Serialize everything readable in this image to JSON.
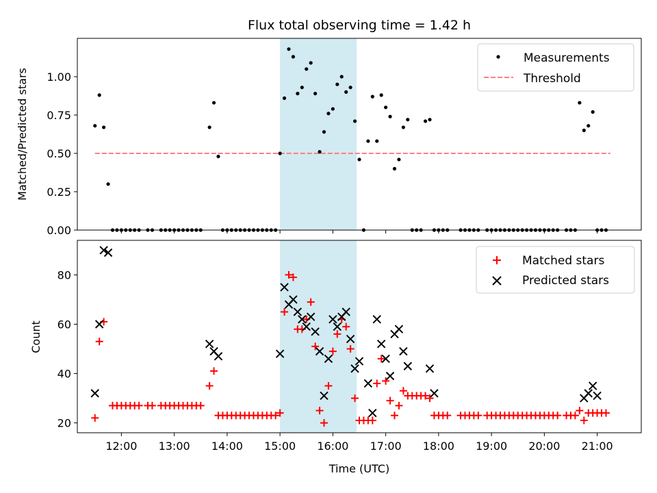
{
  "colors": {
    "highlight": "#add8e6",
    "threshold": "#ff7f7f",
    "matched": "#ff0000",
    "predicted": "#000000",
    "measurement": "#000000"
  },
  "chart_data": [
    {
      "type": "scatter",
      "title": "Flux total observing time = 1.42 h",
      "xlabel": "",
      "ylabel": "Matched/Predicted stars",
      "xlim": [
        "11:10",
        "21:50"
      ],
      "ylim": [
        0,
        1.25
      ],
      "yticks": [
        "0.00",
        "0.25",
        "0.50",
        "0.75",
        "1.00"
      ],
      "grid": false,
      "legend_position": "upper right",
      "highlight_span": [
        "15:00",
        "16:27"
      ],
      "series": [
        {
          "name": "Measurements",
          "kind": "points",
          "points": [
            [
              "11:30",
              0.68
            ],
            [
              "11:35",
              0.88
            ],
            [
              "11:40",
              0.67
            ],
            [
              "11:45",
              0.3
            ],
            [
              "11:50",
              0
            ],
            [
              "11:55",
              0
            ],
            [
              "12:00",
              0
            ],
            [
              "12:05",
              0
            ],
            [
              "12:10",
              0
            ],
            [
              "12:15",
              0
            ],
            [
              "12:20",
              0
            ],
            [
              "12:30",
              0
            ],
            [
              "12:35",
              0
            ],
            [
              "12:45",
              0
            ],
            [
              "12:50",
              0
            ],
            [
              "12:55",
              0
            ],
            [
              "13:00",
              0
            ],
            [
              "13:05",
              0
            ],
            [
              "13:10",
              0
            ],
            [
              "13:15",
              0
            ],
            [
              "13:20",
              0
            ],
            [
              "13:25",
              0
            ],
            [
              "13:30",
              0
            ],
            [
              "13:40",
              0.67
            ],
            [
              "13:45",
              0.83
            ],
            [
              "13:50",
              0.48
            ],
            [
              "13:55",
              0
            ],
            [
              "14:00",
              0
            ],
            [
              "14:05",
              0
            ],
            [
              "14:10",
              0
            ],
            [
              "14:15",
              0
            ],
            [
              "14:20",
              0
            ],
            [
              "14:25",
              0
            ],
            [
              "14:30",
              0
            ],
            [
              "14:35",
              0
            ],
            [
              "14:40",
              0
            ],
            [
              "14:45",
              0
            ],
            [
              "14:50",
              0
            ],
            [
              "14:55",
              0
            ],
            [
              "15:00",
              0.5
            ],
            [
              "15:05",
              0.86
            ],
            [
              "15:10",
              1.18
            ],
            [
              "15:15",
              1.13
            ],
            [
              "15:20",
              0.89
            ],
            [
              "15:25",
              0.93
            ],
            [
              "15:30",
              1.05
            ],
            [
              "15:35",
              1.09
            ],
            [
              "15:40",
              0.89
            ],
            [
              "15:45",
              0.51
            ],
            [
              "15:50",
              0.64
            ],
            [
              "15:55",
              0.76
            ],
            [
              "16:00",
              0.79
            ],
            [
              "16:05",
              0.95
            ],
            [
              "16:10",
              1.0
            ],
            [
              "16:15",
              0.9
            ],
            [
              "16:20",
              0.93
            ],
            [
              "16:25",
              0.71
            ],
            [
              "16:30",
              0.46
            ],
            [
              "16:35",
              0
            ],
            [
              "16:40",
              0.58
            ],
            [
              "16:45",
              0.87
            ],
            [
              "16:50",
              0.58
            ],
            [
              "16:55",
              0.88
            ],
            [
              "17:00",
              0.8
            ],
            [
              "17:05",
              0.74
            ],
            [
              "17:10",
              0.4
            ],
            [
              "17:15",
              0.46
            ],
            [
              "17:20",
              0.67
            ],
            [
              "17:25",
              0.72
            ],
            [
              "17:30",
              0
            ],
            [
              "17:35",
              0
            ],
            [
              "17:40",
              0
            ],
            [
              "17:45",
              0.71
            ],
            [
              "17:50",
              0.72
            ],
            [
              "17:55",
              0
            ],
            [
              "18:00",
              0
            ],
            [
              "18:05",
              0
            ],
            [
              "18:10",
              0
            ],
            [
              "18:25",
              0
            ],
            [
              "18:30",
              0
            ],
            [
              "18:35",
              0
            ],
            [
              "18:40",
              0
            ],
            [
              "18:45",
              0
            ],
            [
              "18:55",
              0
            ],
            [
              "19:00",
              0
            ],
            [
              "19:05",
              0
            ],
            [
              "19:10",
              0
            ],
            [
              "19:15",
              0
            ],
            [
              "19:20",
              0
            ],
            [
              "19:25",
              0
            ],
            [
              "19:30",
              0
            ],
            [
              "19:35",
              0
            ],
            [
              "19:40",
              0
            ],
            [
              "19:45",
              0
            ],
            [
              "19:50",
              0
            ],
            [
              "19:55",
              0
            ],
            [
              "20:00",
              0
            ],
            [
              "20:05",
              0
            ],
            [
              "20:10",
              0
            ],
            [
              "20:15",
              0
            ],
            [
              "20:25",
              0
            ],
            [
              "20:30",
              0
            ],
            [
              "20:35",
              0
            ],
            [
              "20:40",
              0.83
            ],
            [
              "20:45",
              0.65
            ],
            [
              "20:50",
              0.68
            ],
            [
              "20:55",
              0.77
            ],
            [
              "21:00",
              0
            ],
            [
              "21:05",
              0
            ],
            [
              "21:10",
              0
            ]
          ]
        },
        {
          "name": "Threshold",
          "kind": "dashed-line",
          "points": [
            [
              "11:30",
              0.5
            ],
            [
              "21:15",
              0.5
            ]
          ]
        }
      ]
    },
    {
      "type": "scatter",
      "xlabel": "Time (UTC)",
      "ylabel": "Count",
      "xlim": [
        "11:10",
        "21:50"
      ],
      "ylim": [
        16,
        94
      ],
      "yticks": [
        20,
        40,
        60,
        80
      ],
      "xticks": [
        "12:00",
        "13:00",
        "14:00",
        "15:00",
        "16:00",
        "17:00",
        "18:00",
        "19:00",
        "20:00",
        "21:00"
      ],
      "grid": false,
      "legend_position": "upper right",
      "highlight_span": [
        "15:00",
        "16:27"
      ],
      "series": [
        {
          "name": "Matched stars",
          "marker": "plus",
          "points": [
            [
              "11:30",
              22
            ],
            [
              "11:35",
              53
            ],
            [
              "11:40",
              61
            ],
            [
              "11:50",
              27
            ],
            [
              "11:55",
              27
            ],
            [
              "12:00",
              27
            ],
            [
              "12:05",
              27
            ],
            [
              "12:10",
              27
            ],
            [
              "12:15",
              27
            ],
            [
              "12:20",
              27
            ],
            [
              "12:30",
              27
            ],
            [
              "12:35",
              27
            ],
            [
              "12:45",
              27
            ],
            [
              "12:50",
              27
            ],
            [
              "12:55",
              27
            ],
            [
              "13:00",
              27
            ],
            [
              "13:05",
              27
            ],
            [
              "13:10",
              27
            ],
            [
              "13:15",
              27
            ],
            [
              "13:20",
              27
            ],
            [
              "13:25",
              27
            ],
            [
              "13:30",
              27
            ],
            [
              "13:40",
              35
            ],
            [
              "13:45",
              41
            ],
            [
              "13:50",
              23
            ],
            [
              "13:55",
              23
            ],
            [
              "14:00",
              23
            ],
            [
              "14:05",
              23
            ],
            [
              "14:10",
              23
            ],
            [
              "14:15",
              23
            ],
            [
              "14:20",
              23
            ],
            [
              "14:25",
              23
            ],
            [
              "14:30",
              23
            ],
            [
              "14:35",
              23
            ],
            [
              "14:40",
              23
            ],
            [
              "14:45",
              23
            ],
            [
              "14:50",
              23
            ],
            [
              "14:55",
              23
            ],
            [
              "15:00",
              24
            ],
            [
              "15:05",
              65
            ],
            [
              "15:10",
              80
            ],
            [
              "15:15",
              79
            ],
            [
              "15:20",
              58
            ],
            [
              "15:25",
              58
            ],
            [
              "15:30",
              62
            ],
            [
              "15:35",
              69
            ],
            [
              "15:40",
              51
            ],
            [
              "15:45",
              25
            ],
            [
              "15:50",
              20
            ],
            [
              "15:55",
              35
            ],
            [
              "16:00",
              49
            ],
            [
              "16:05",
              56
            ],
            [
              "16:10",
              62
            ],
            [
              "16:15",
              59
            ],
            [
              "16:20",
              50
            ],
            [
              "16:25",
              30
            ],
            [
              "16:30",
              21
            ],
            [
              "16:35",
              21
            ],
            [
              "16:40",
              21
            ],
            [
              "16:45",
              21
            ],
            [
              "16:50",
              36
            ],
            [
              "16:55",
              46
            ],
            [
              "17:00",
              37
            ],
            [
              "17:05",
              29
            ],
            [
              "17:10",
              23
            ],
            [
              "17:15",
              27
            ],
            [
              "17:20",
              33
            ],
            [
              "17:25",
              31
            ],
            [
              "17:30",
              31
            ],
            [
              "17:35",
              31
            ],
            [
              "17:40",
              31
            ],
            [
              "17:45",
              31
            ],
            [
              "17:50",
              30
            ],
            [
              "17:55",
              23
            ],
            [
              "18:00",
              23
            ],
            [
              "18:05",
              23
            ],
            [
              "18:10",
              23
            ],
            [
              "18:25",
              23
            ],
            [
              "18:30",
              23
            ],
            [
              "18:35",
              23
            ],
            [
              "18:40",
              23
            ],
            [
              "18:45",
              23
            ],
            [
              "18:55",
              23
            ],
            [
              "19:00",
              23
            ],
            [
              "19:05",
              23
            ],
            [
              "19:10",
              23
            ],
            [
              "19:15",
              23
            ],
            [
              "19:20",
              23
            ],
            [
              "19:25",
              23
            ],
            [
              "19:30",
              23
            ],
            [
              "19:35",
              23
            ],
            [
              "19:40",
              23
            ],
            [
              "19:45",
              23
            ],
            [
              "19:50",
              23
            ],
            [
              "19:55",
              23
            ],
            [
              "20:00",
              23
            ],
            [
              "20:05",
              23
            ],
            [
              "20:10",
              23
            ],
            [
              "20:15",
              23
            ],
            [
              "20:25",
              23
            ],
            [
              "20:30",
              23
            ],
            [
              "20:35",
              23
            ],
            [
              "20:40",
              25
            ],
            [
              "20:45",
              21
            ],
            [
              "20:50",
              24
            ],
            [
              "20:55",
              24
            ],
            [
              "21:00",
              24
            ],
            [
              "21:05",
              24
            ],
            [
              "21:10",
              24
            ]
          ]
        },
        {
          "name": "Predicted stars",
          "marker": "x",
          "points": [
            [
              "11:30",
              32
            ],
            [
              "11:35",
              60
            ],
            [
              "11:40",
              90
            ],
            [
              "11:45",
              89
            ],
            [
              "13:40",
              52
            ],
            [
              "13:45",
              49
            ],
            [
              "13:50",
              47
            ],
            [
              "15:00",
              48
            ],
            [
              "15:05",
              75
            ],
            [
              "15:10",
              68
            ],
            [
              "15:15",
              70
            ],
            [
              "15:20",
              65
            ],
            [
              "15:25",
              62
            ],
            [
              "15:30",
              59
            ],
            [
              "15:35",
              63
            ],
            [
              "15:40",
              57
            ],
            [
              "15:45",
              49
            ],
            [
              "15:50",
              31
            ],
            [
              "15:55",
              46
            ],
            [
              "16:00",
              62
            ],
            [
              "16:05",
              59
            ],
            [
              "16:10",
              63
            ],
            [
              "16:15",
              65
            ],
            [
              "16:20",
              54
            ],
            [
              "16:25",
              42
            ],
            [
              "16:30",
              45
            ],
            [
              "16:40",
              36
            ],
            [
              "16:45",
              24
            ],
            [
              "16:50",
              62
            ],
            [
              "16:55",
              52
            ],
            [
              "17:00",
              46
            ],
            [
              "17:05",
              39
            ],
            [
              "17:10",
              56
            ],
            [
              "17:15",
              58
            ],
            [
              "17:20",
              49
            ],
            [
              "17:25",
              43
            ],
            [
              "17:50",
              42
            ],
            [
              "17:55",
              32
            ],
            [
              "20:45",
              30
            ],
            [
              "20:50",
              32
            ],
            [
              "20:55",
              35
            ],
            [
              "21:00",
              31
            ]
          ]
        }
      ]
    }
  ]
}
